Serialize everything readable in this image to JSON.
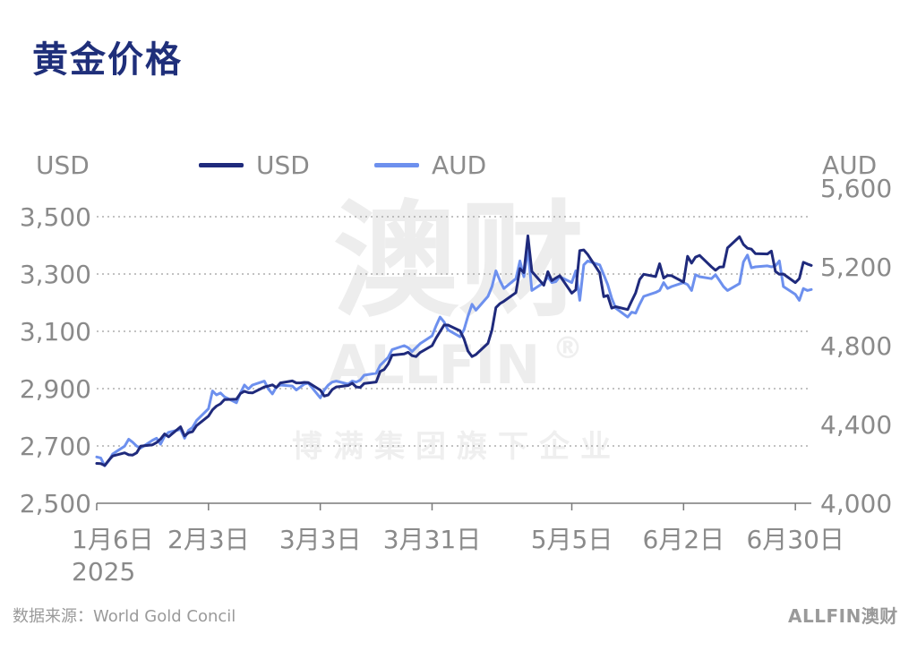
{
  "title": "黄金价格",
  "source": "数据来源：World Gold Concil",
  "brand": "ALLFIN澳财",
  "watermark": {
    "main": "澳财",
    "sub": "ALLFIN",
    "reg": "®",
    "tagline": "博满集团旗下企业"
  },
  "colors": {
    "usd": "#1f2a7c",
    "aud": "#6d90ee",
    "title": "#1f2f7a",
    "grid": "#9e9e9e"
  },
  "chart_data": {
    "type": "line",
    "title": "黄金价格",
    "left_axis": {
      "unit": "USD",
      "ylim": [
        2500,
        3600
      ],
      "ticks": [
        2500,
        2700,
        2900,
        3100,
        3300,
        3500
      ],
      "tick_labels": [
        "2,500",
        "2,700",
        "2,900",
        "3,100",
        "3,300",
        "3,500"
      ]
    },
    "right_axis": {
      "unit": "AUD",
      "ylim": [
        4000,
        5600
      ],
      "ticks": [
        4000,
        4400,
        4800,
        5200,
        5600
      ],
      "tick_labels": [
        "4,000",
        "4,400",
        "4,800",
        "5,200",
        "5,600"
      ]
    },
    "x_axis": {
      "start": "2025-01-06",
      "end": "2025-07-04",
      "ticks": [
        {
          "date": "2025-01-06",
          "label": "1月6日",
          "sublabel": "2025"
        },
        {
          "date": "2025-02-03",
          "label": "2月3日"
        },
        {
          "date": "2025-03-03",
          "label": "3月3日"
        },
        {
          "date": "2025-03-31",
          "label": "3月31日"
        },
        {
          "date": "2025-05-05",
          "label": "5月5日"
        },
        {
          "date": "2025-06-02",
          "label": "6月2日"
        },
        {
          "date": "2025-06-30",
          "label": "6月30日"
        }
      ]
    },
    "legend": {
      "position": "top-center",
      "entries": [
        "USD",
        "AUD"
      ]
    },
    "grid": "horizontal-dotted",
    "series": [
      {
        "name": "USD",
        "axis": "left",
        "points": [
          [
            "2025-01-06",
            2639
          ],
          [
            "2025-01-07",
            2638
          ],
          [
            "2025-01-08",
            2632
          ],
          [
            "2025-01-09",
            2650
          ],
          [
            "2025-01-10",
            2665
          ],
          [
            "2025-01-13",
            2676
          ],
          [
            "2025-01-14",
            2669
          ],
          [
            "2025-01-15",
            2668
          ],
          [
            "2025-01-16",
            2676
          ],
          [
            "2025-01-17",
            2699
          ],
          [
            "2025-01-20",
            2704
          ],
          [
            "2025-01-21",
            2712
          ],
          [
            "2025-01-22",
            2724
          ],
          [
            "2025-01-23",
            2742
          ],
          [
            "2025-01-24",
            2732
          ],
          [
            "2025-01-27",
            2767
          ],
          [
            "2025-01-28",
            2735
          ],
          [
            "2025-01-29",
            2746
          ],
          [
            "2025-01-30",
            2750
          ],
          [
            "2025-01-31",
            2771
          ],
          [
            "2025-02-03",
            2804
          ],
          [
            "2025-02-04",
            2826
          ],
          [
            "2025-02-05",
            2839
          ],
          [
            "2025-02-06",
            2847
          ],
          [
            "2025-02-07",
            2862
          ],
          [
            "2025-02-10",
            2863
          ],
          [
            "2025-02-11",
            2883
          ],
          [
            "2025-02-12",
            2891
          ],
          [
            "2025-02-13",
            2886
          ],
          [
            "2025-02-14",
            2885
          ],
          [
            "2025-02-17",
            2906
          ],
          [
            "2025-02-18",
            2909
          ],
          [
            "2025-02-19",
            2913
          ],
          [
            "2025-02-20",
            2904
          ],
          [
            "2025-02-21",
            2920
          ],
          [
            "2025-02-24",
            2927
          ],
          [
            "2025-02-25",
            2920
          ],
          [
            "2025-02-26",
            2920
          ],
          [
            "2025-02-27",
            2922
          ],
          [
            "2025-02-28",
            2921
          ],
          [
            "2025-03-03",
            2895
          ],
          [
            "2025-03-04",
            2874
          ],
          [
            "2025-03-05",
            2878
          ],
          [
            "2025-03-06",
            2897
          ],
          [
            "2025-03-07",
            2906
          ],
          [
            "2025-03-10",
            2911
          ],
          [
            "2025-03-11",
            2919
          ],
          [
            "2025-03-12",
            2906
          ],
          [
            "2025-03-13",
            2904
          ],
          [
            "2025-03-14",
            2918
          ],
          [
            "2025-03-17",
            2923
          ],
          [
            "2025-03-18",
            2960
          ],
          [
            "2025-03-19",
            2967
          ],
          [
            "2025-03-20",
            2986
          ],
          [
            "2025-03-21",
            3017
          ],
          [
            "2025-03-24",
            3021
          ],
          [
            "2025-03-25",
            3027
          ],
          [
            "2025-03-26",
            3015
          ],
          [
            "2025-03-27",
            3012
          ],
          [
            "2025-03-28",
            3026
          ],
          [
            "2025-03-31",
            3050
          ],
          [
            "2025-04-01",
            3076
          ],
          [
            "2025-04-02",
            3099
          ],
          [
            "2025-04-03",
            3122
          ],
          [
            "2025-04-04",
            3122
          ],
          [
            "2025-04-07",
            3102
          ],
          [
            "2025-04-08",
            3074
          ],
          [
            "2025-04-09",
            3031
          ],
          [
            "2025-04-10",
            3012
          ],
          [
            "2025-04-11",
            3019
          ],
          [
            "2025-04-14",
            3058
          ],
          [
            "2025-04-15",
            3105
          ],
          [
            "2025-04-16",
            3183
          ],
          [
            "2025-04-17",
            3197
          ],
          [
            "2025-04-18",
            3205
          ],
          [
            "2025-04-21",
            3235
          ],
          [
            "2025-04-22",
            3319
          ],
          [
            "2025-04-23",
            3305
          ],
          [
            "2025-04-24",
            3433
          ],
          [
            "2025-04-25",
            3309
          ],
          [
            "2025-04-28",
            3261
          ],
          [
            "2025-04-29",
            3308
          ],
          [
            "2025-04-30",
            3277
          ],
          [
            "2025-05-01",
            3286
          ],
          [
            "2025-05-02",
            3294
          ],
          [
            "2025-05-05",
            3233
          ],
          [
            "2025-05-06",
            3245
          ],
          [
            "2025-05-07",
            3382
          ],
          [
            "2025-05-08",
            3384
          ],
          [
            "2025-05-09",
            3368
          ],
          [
            "2025-05-12",
            3304
          ],
          [
            "2025-05-13",
            3221
          ],
          [
            "2025-05-14",
            3225
          ],
          [
            "2025-05-15",
            3181
          ],
          [
            "2025-05-16",
            3186
          ],
          [
            "2025-05-19",
            3176
          ],
          [
            "2025-05-20",
            3206
          ],
          [
            "2025-05-21",
            3234
          ],
          [
            "2025-05-22",
            3281
          ],
          [
            "2025-05-23",
            3299
          ],
          [
            "2025-05-26",
            3291
          ],
          [
            "2025-05-27",
            3336
          ],
          [
            "2025-05-28",
            3286
          ],
          [
            "2025-05-29",
            3295
          ],
          [
            "2025-05-30",
            3294
          ],
          [
            "2025-06-02",
            3272
          ],
          [
            "2025-06-03",
            3362
          ],
          [
            "2025-06-04",
            3338
          ],
          [
            "2025-06-05",
            3359
          ],
          [
            "2025-06-06",
            3365
          ],
          [
            "2025-06-09",
            3325
          ],
          [
            "2025-06-10",
            3313
          ],
          [
            "2025-06-11",
            3324
          ],
          [
            "2025-06-12",
            3325
          ],
          [
            "2025-06-13",
            3391
          ],
          [
            "2025-06-16",
            3430
          ],
          [
            "2025-06-17",
            3403
          ],
          [
            "2025-06-18",
            3390
          ],
          [
            "2025-06-19",
            3387
          ],
          [
            "2025-06-20",
            3371
          ],
          [
            "2025-06-23",
            3370
          ],
          [
            "2025-06-24",
            3380
          ],
          [
            "2025-06-25",
            3309
          ],
          [
            "2025-06-26",
            3299
          ],
          [
            "2025-06-27",
            3300
          ],
          [
            "2025-06-30",
            3270
          ],
          [
            "2025-07-01",
            3284
          ],
          [
            "2025-07-02",
            3341
          ],
          [
            "2025-07-03",
            3335
          ],
          [
            "2025-07-04",
            3330
          ]
        ]
      },
      {
        "name": "AUD",
        "axis": "right",
        "points": [
          [
            "2025-01-06",
            4235
          ],
          [
            "2025-01-07",
            4230
          ],
          [
            "2025-01-08",
            4190
          ],
          [
            "2025-01-09",
            4215
          ],
          [
            "2025-01-10",
            4250
          ],
          [
            "2025-01-13",
            4290
          ],
          [
            "2025-01-14",
            4325
          ],
          [
            "2025-01-15",
            4310
          ],
          [
            "2025-01-16",
            4290
          ],
          [
            "2025-01-17",
            4280
          ],
          [
            "2025-01-20",
            4320
          ],
          [
            "2025-01-21",
            4330
          ],
          [
            "2025-01-22",
            4300
          ],
          [
            "2025-01-23",
            4340
          ],
          [
            "2025-01-24",
            4360
          ],
          [
            "2025-01-27",
            4375
          ],
          [
            "2025-01-28",
            4330
          ],
          [
            "2025-01-29",
            4370
          ],
          [
            "2025-01-30",
            4385
          ],
          [
            "2025-01-31",
            4420
          ],
          [
            "2025-02-03",
            4480
          ],
          [
            "2025-02-04",
            4570
          ],
          [
            "2025-02-05",
            4550
          ],
          [
            "2025-02-06",
            4560
          ],
          [
            "2025-02-07",
            4540
          ],
          [
            "2025-02-10",
            4510
          ],
          [
            "2025-02-11",
            4560
          ],
          [
            "2025-02-12",
            4600
          ],
          [
            "2025-02-13",
            4580
          ],
          [
            "2025-02-14",
            4600
          ],
          [
            "2025-02-17",
            4620
          ],
          [
            "2025-02-18",
            4580
          ],
          [
            "2025-02-19",
            4555
          ],
          [
            "2025-02-20",
            4590
          ],
          [
            "2025-02-21",
            4600
          ],
          [
            "2025-02-24",
            4595
          ],
          [
            "2025-02-25",
            4575
          ],
          [
            "2025-02-26",
            4590
          ],
          [
            "2025-02-27",
            4605
          ],
          [
            "2025-02-28",
            4610
          ],
          [
            "2025-03-03",
            4535
          ],
          [
            "2025-03-04",
            4575
          ],
          [
            "2025-03-05",
            4600
          ],
          [
            "2025-03-06",
            4615
          ],
          [
            "2025-03-07",
            4620
          ],
          [
            "2025-03-10",
            4605
          ],
          [
            "2025-03-11",
            4620
          ],
          [
            "2025-03-12",
            4615
          ],
          [
            "2025-03-13",
            4625
          ],
          [
            "2025-03-14",
            4650
          ],
          [
            "2025-03-17",
            4660
          ],
          [
            "2025-03-18",
            4700
          ],
          [
            "2025-03-19",
            4720
          ],
          [
            "2025-03-20",
            4740
          ],
          [
            "2025-03-21",
            4780
          ],
          [
            "2025-03-24",
            4800
          ],
          [
            "2025-03-25",
            4790
          ],
          [
            "2025-03-26",
            4770
          ],
          [
            "2025-03-27",
            4790
          ],
          [
            "2025-03-28",
            4810
          ],
          [
            "2025-03-31",
            4850
          ],
          [
            "2025-04-01",
            4900
          ],
          [
            "2025-04-02",
            4945
          ],
          [
            "2025-04-03",
            4920
          ],
          [
            "2025-04-04",
            4880
          ],
          [
            "2025-04-07",
            4845
          ],
          [
            "2025-04-08",
            4880
          ],
          [
            "2025-04-09",
            4950
          ],
          [
            "2025-04-10",
            5010
          ],
          [
            "2025-04-11",
            4980
          ],
          [
            "2025-04-14",
            5050
          ],
          [
            "2025-04-15",
            5100
          ],
          [
            "2025-04-16",
            5180
          ],
          [
            "2025-04-17",
            5130
          ],
          [
            "2025-04-18",
            5090
          ],
          [
            "2025-04-21",
            5140
          ],
          [
            "2025-04-22",
            5230
          ],
          [
            "2025-04-23",
            5150
          ],
          [
            "2025-04-24",
            5290
          ],
          [
            "2025-04-25",
            5080
          ],
          [
            "2025-04-28",
            5120
          ],
          [
            "2025-04-29",
            5150
          ],
          [
            "2025-04-30",
            5120
          ],
          [
            "2025-05-01",
            5125
          ],
          [
            "2025-05-02",
            5150
          ],
          [
            "2025-05-05",
            5120
          ],
          [
            "2025-05-06",
            5180
          ],
          [
            "2025-05-07",
            5030
          ],
          [
            "2025-05-08",
            5210
          ],
          [
            "2025-05-09",
            5230
          ],
          [
            "2025-05-12",
            5210
          ],
          [
            "2025-05-13",
            5160
          ],
          [
            "2025-05-14",
            5110
          ],
          [
            "2025-05-15",
            5040
          ],
          [
            "2025-05-16",
            4990
          ],
          [
            "2025-05-19",
            4945
          ],
          [
            "2025-05-20",
            4970
          ],
          [
            "2025-05-21",
            4965
          ],
          [
            "2025-05-22",
            5010
          ],
          [
            "2025-05-23",
            5050
          ],
          [
            "2025-05-26",
            5070
          ],
          [
            "2025-05-27",
            5080
          ],
          [
            "2025-05-28",
            5120
          ],
          [
            "2025-05-29",
            5090
          ],
          [
            "2025-05-30",
            5100
          ],
          [
            "2025-06-02",
            5120
          ],
          [
            "2025-06-03",
            5110
          ],
          [
            "2025-06-04",
            5080
          ],
          [
            "2025-06-05",
            5160
          ],
          [
            "2025-06-06",
            5150
          ],
          [
            "2025-06-09",
            5140
          ],
          [
            "2025-06-10",
            5160
          ],
          [
            "2025-06-11",
            5130
          ],
          [
            "2025-06-12",
            5100
          ],
          [
            "2025-06-13",
            5080
          ],
          [
            "2025-06-16",
            5115
          ],
          [
            "2025-06-17",
            5225
          ],
          [
            "2025-06-18",
            5260
          ],
          [
            "2025-06-19",
            5195
          ],
          [
            "2025-06-20",
            5200
          ],
          [
            "2025-06-23",
            5205
          ],
          [
            "2025-06-24",
            5200
          ],
          [
            "2025-06-25",
            5205
          ],
          [
            "2025-06-26",
            5230
          ],
          [
            "2025-06-27",
            5100
          ],
          [
            "2025-06-30",
            5060
          ],
          [
            "2025-07-01",
            5030
          ],
          [
            "2025-07-02",
            5090
          ],
          [
            "2025-07-03",
            5080
          ],
          [
            "2025-07-04",
            5085
          ]
        ]
      }
    ]
  }
}
